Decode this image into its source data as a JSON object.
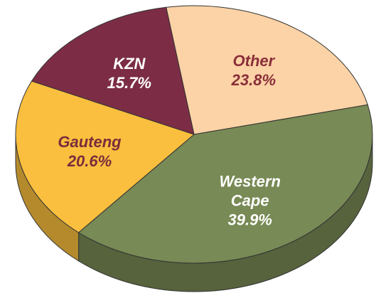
{
  "chart_data": {
    "type": "pie",
    "categories": [
      "Other",
      "Western Cape",
      "Gauteng",
      "KZN"
    ],
    "values": [
      23.8,
      39.9,
      20.6,
      15.7
    ],
    "value_labels": [
      "23.8%",
      "39.9%",
      "20.6%",
      "15.7%"
    ],
    "colors": [
      "#fcd3a6",
      "#788a55",
      "#fabf3e",
      "#7c2d45"
    ],
    "label_colors": [
      "#8a2f3a",
      "#ffffff",
      "#7a2d3c",
      "#ffffff"
    ],
    "start_angle": -99
  }
}
